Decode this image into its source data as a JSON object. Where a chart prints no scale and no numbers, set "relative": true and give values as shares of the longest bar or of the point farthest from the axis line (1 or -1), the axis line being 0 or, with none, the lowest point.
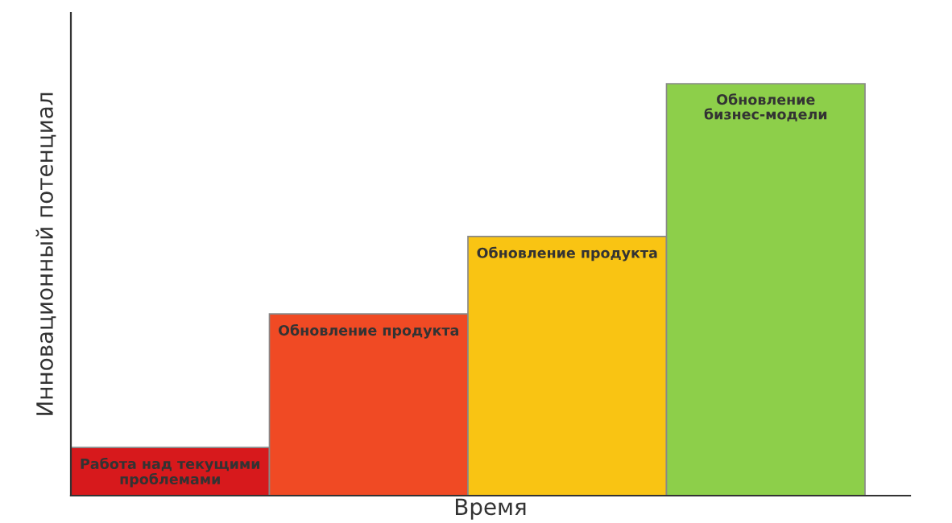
{
  "chart_data": {
    "type": "bar",
    "relative": true,
    "xlabel": "Время",
    "ylabel": "Инновационный потенциал",
    "categories": [
      "Работа над текущими\nпроблемами",
      "Обновление продукта",
      "Обновление продукта",
      "Обновление\nбизнес-модели"
    ],
    "values": [
      0.117,
      0.441,
      0.629,
      1
    ],
    "colors": [
      "#d7191c",
      "#f04a24",
      "#f9c413",
      "#8dcf4a"
    ],
    "legend": false
  }
}
